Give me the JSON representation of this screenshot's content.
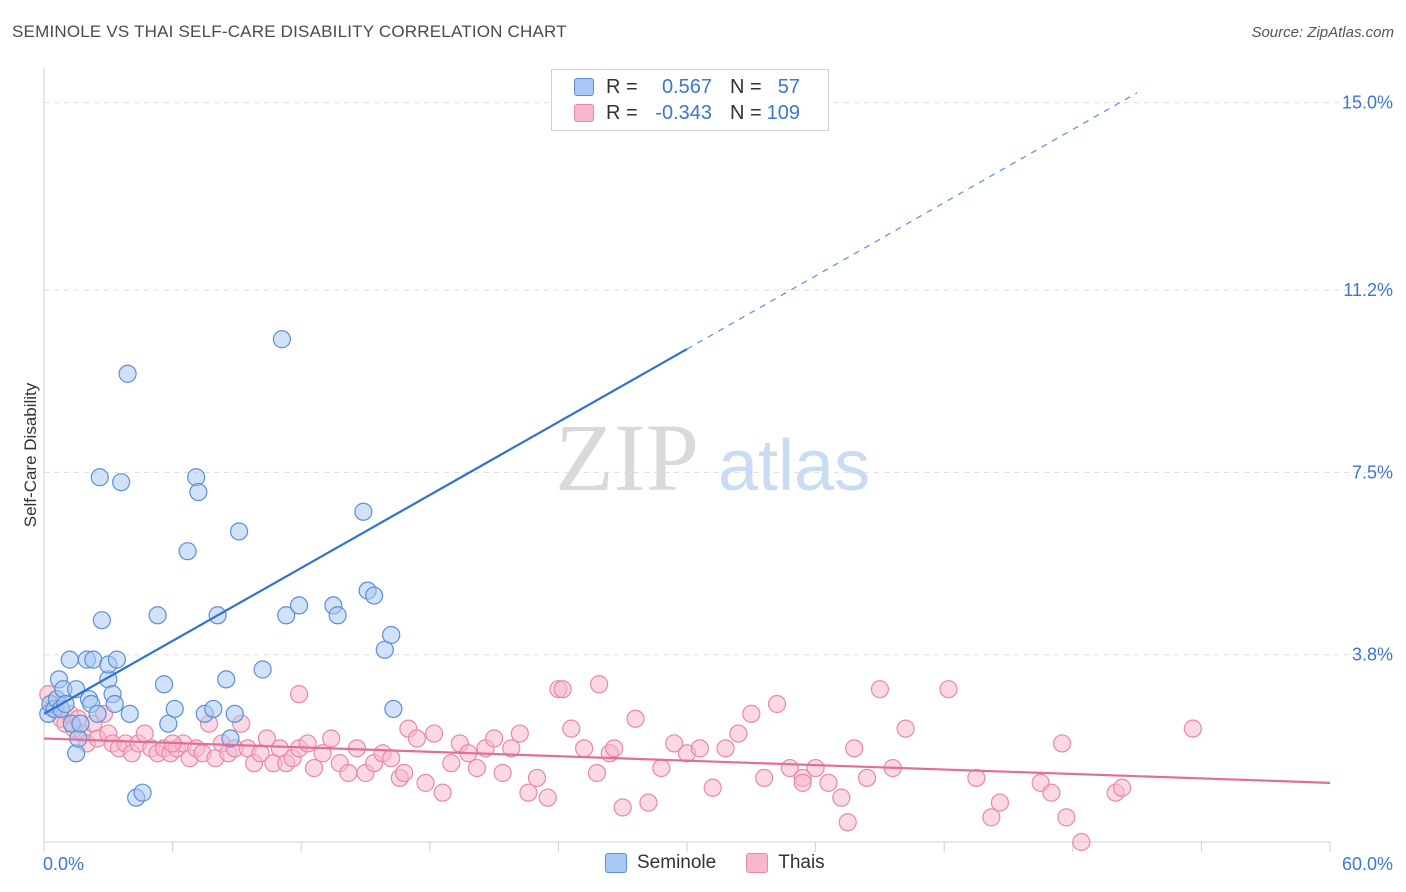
{
  "title": "SEMINOLE VS THAI SELF-CARE DISABILITY CORRELATION CHART",
  "source": "Source: ZipAtlas.com",
  "watermark": {
    "zip": "ZIP",
    "atlas": "atlas"
  },
  "colors": {
    "seminole_fill": "#a9c8f3",
    "seminole_stroke": "#5b8fd6",
    "seminole_line": "#2f72cf",
    "thai_fill": "#f7b8cb",
    "thai_stroke": "#e889a8",
    "thai_line": "#e26e97",
    "axis_label": "#3b77d0",
    "grid": "#dcdcdc"
  },
  "legend_top": [
    {
      "label": "R =",
      "r": "0.567",
      "n_label": "N =",
      "n": "57",
      "series": "Seminole"
    },
    {
      "label": "R =",
      "r": "-0.343",
      "n_label": "N =",
      "n": "109",
      "series": "Thais"
    }
  ],
  "legend_bottom": [
    {
      "name": "Seminole"
    },
    {
      "name": "Thais"
    }
  ],
  "chart_data": {
    "type": "scatter",
    "title": "SEMINOLE VS THAI SELF-CARE DISABILITY CORRELATION CHART",
    "xlabel": "",
    "ylabel": "Self-Care Disability",
    "xlim": [
      0,
      60
    ],
    "ylim": [
      0,
      15.5
    ],
    "x_tick_labels": [
      "0.0%",
      "60.0%"
    ],
    "y_ticks": [
      3.8,
      7.5,
      11.2,
      15.0
    ],
    "y_tick_labels": [
      "3.8%",
      "7.5%",
      "11.2%",
      "15.0%"
    ],
    "grid": true,
    "legend_position": "top-center",
    "series": [
      {
        "name": "Seminole",
        "R": 0.567,
        "N": 57,
        "trend": {
          "x0": 0,
          "y0": 2.6,
          "x1": 30,
          "y1": 10.0,
          "dashed_to_x": 51,
          "dashed_to_y": 15.2
        },
        "points": [
          [
            0.2,
            2.6
          ],
          [
            0.3,
            2.8
          ],
          [
            0.5,
            2.7
          ],
          [
            0.6,
            2.9
          ],
          [
            0.7,
            3.3
          ],
          [
            0.8,
            2.7
          ],
          [
            0.9,
            3.1
          ],
          [
            1.0,
            2.8
          ],
          [
            1.2,
            3.7
          ],
          [
            1.3,
            2.4
          ],
          [
            1.5,
            3.1
          ],
          [
            1.5,
            1.8
          ],
          [
            1.6,
            2.1
          ],
          [
            1.7,
            2.4
          ],
          [
            2.0,
            3.7
          ],
          [
            2.1,
            2.9
          ],
          [
            2.2,
            2.8
          ],
          [
            2.3,
            3.7
          ],
          [
            2.5,
            2.6
          ],
          [
            2.6,
            7.4
          ],
          [
            2.7,
            4.5
          ],
          [
            3.0,
            3.3
          ],
          [
            3.0,
            3.6
          ],
          [
            3.2,
            3.0
          ],
          [
            3.3,
            2.8
          ],
          [
            3.4,
            3.7
          ],
          [
            3.6,
            7.3
          ],
          [
            3.9,
            9.5
          ],
          [
            4.0,
            2.6
          ],
          [
            4.3,
            0.9
          ],
          [
            4.6,
            1.0
          ],
          [
            5.3,
            4.6
          ],
          [
            5.6,
            3.2
          ],
          [
            5.8,
            2.4
          ],
          [
            6.1,
            2.7
          ],
          [
            6.7,
            5.9
          ],
          [
            7.1,
            7.4
          ],
          [
            7.2,
            7.1
          ],
          [
            7.5,
            2.6
          ],
          [
            7.9,
            2.7
          ],
          [
            8.1,
            4.6
          ],
          [
            8.5,
            3.3
          ],
          [
            8.7,
            2.1
          ],
          [
            8.9,
            2.6
          ],
          [
            9.1,
            6.3
          ],
          [
            10.2,
            3.5
          ],
          [
            11.1,
            10.2
          ],
          [
            11.3,
            4.6
          ],
          [
            11.9,
            4.8
          ],
          [
            13.5,
            4.8
          ],
          [
            13.7,
            4.6
          ],
          [
            14.9,
            6.7
          ],
          [
            15.1,
            5.1
          ],
          [
            15.4,
            5.0
          ],
          [
            15.9,
            3.9
          ],
          [
            16.2,
            4.2
          ],
          [
            16.3,
            2.7
          ]
        ]
      },
      {
        "name": "Thais",
        "R": -0.343,
        "N": 109,
        "trend": {
          "x0": 0,
          "y0": 2.1,
          "x1": 60,
          "y1": 1.2
        },
        "points": [
          [
            0.2,
            3.0
          ],
          [
            0.4,
            2.7
          ],
          [
            0.6,
            2.9
          ],
          [
            0.8,
            2.5
          ],
          [
            1.0,
            2.4
          ],
          [
            1.2,
            2.6
          ],
          [
            1.4,
            2.3
          ],
          [
            1.6,
            2.5
          ],
          [
            1.8,
            2.2
          ],
          [
            2.0,
            2.0
          ],
          [
            2.3,
            2.4
          ],
          [
            2.5,
            2.1
          ],
          [
            2.8,
            2.6
          ],
          [
            3.0,
            2.2
          ],
          [
            3.2,
            2.0
          ],
          [
            3.5,
            1.9
          ],
          [
            3.8,
            2.0
          ],
          [
            4.1,
            1.8
          ],
          [
            4.4,
            2.0
          ],
          [
            4.7,
            2.2
          ],
          [
            5.0,
            1.9
          ],
          [
            5.3,
            1.8
          ],
          [
            5.6,
            1.9
          ],
          [
            5.9,
            1.8
          ],
          [
            6.2,
            1.9
          ],
          [
            6.5,
            2.0
          ],
          [
            6.8,
            1.7
          ],
          [
            7.1,
            1.9
          ],
          [
            7.4,
            1.8
          ],
          [
            7.7,
            2.4
          ],
          [
            8.0,
            1.7
          ],
          [
            8.3,
            2.0
          ],
          [
            8.6,
            1.8
          ],
          [
            8.9,
            1.9
          ],
          [
            9.2,
            2.4
          ],
          [
            9.5,
            1.9
          ],
          [
            9.8,
            1.6
          ],
          [
            10.1,
            1.8
          ],
          [
            10.4,
            2.1
          ],
          [
            10.7,
            1.6
          ],
          [
            11.0,
            1.9
          ],
          [
            11.3,
            1.6
          ],
          [
            11.6,
            1.7
          ],
          [
            11.9,
            1.9
          ],
          [
            12.3,
            2.0
          ],
          [
            12.6,
            1.5
          ],
          [
            13.0,
            1.8
          ],
          [
            13.4,
            2.1
          ],
          [
            13.8,
            1.6
          ],
          [
            14.2,
            1.4
          ],
          [
            14.6,
            1.9
          ],
          [
            15.0,
            1.4
          ],
          [
            15.4,
            1.6
          ],
          [
            15.8,
            1.8
          ],
          [
            16.2,
            1.7
          ],
          [
            16.6,
            1.3
          ],
          [
            17.0,
            2.3
          ],
          [
            17.4,
            2.1
          ],
          [
            17.8,
            1.2
          ],
          [
            18.2,
            2.2
          ],
          [
            18.6,
            1.0
          ],
          [
            19.0,
            1.6
          ],
          [
            19.4,
            2.0
          ],
          [
            19.8,
            1.8
          ],
          [
            20.2,
            1.5
          ],
          [
            20.6,
            1.9
          ],
          [
            21.0,
            2.1
          ],
          [
            21.4,
            1.4
          ],
          [
            21.8,
            1.9
          ],
          [
            22.2,
            2.2
          ],
          [
            22.6,
            1.0
          ],
          [
            23.0,
            1.3
          ],
          [
            23.5,
            0.9
          ],
          [
            24.0,
            3.1
          ],
          [
            24.6,
            2.3
          ],
          [
            25.2,
            1.9
          ],
          [
            25.8,
            1.4
          ],
          [
            26.4,
            1.8
          ],
          [
            27.0,
            0.7
          ],
          [
            27.6,
            2.5
          ],
          [
            28.2,
            0.8
          ],
          [
            28.8,
            1.5
          ],
          [
            29.4,
            2.0
          ],
          [
            30.0,
            1.8
          ],
          [
            30.6,
            1.9
          ],
          [
            31.2,
            1.1
          ],
          [
            31.8,
            1.9
          ],
          [
            32.4,
            2.2
          ],
          [
            33.0,
            2.6
          ],
          [
            33.6,
            1.3
          ],
          [
            34.2,
            2.8
          ],
          [
            34.8,
            1.5
          ],
          [
            35.4,
            1.3
          ],
          [
            36.0,
            1.5
          ],
          [
            36.6,
            1.2
          ],
          [
            37.2,
            0.9
          ],
          [
            37.8,
            1.9
          ],
          [
            38.4,
            1.3
          ],
          [
            39.0,
            3.1
          ],
          [
            39.6,
            1.5
          ],
          [
            40.2,
            2.3
          ],
          [
            43.5,
            1.3
          ],
          [
            44.2,
            0.5
          ],
          [
            46.5,
            1.2
          ],
          [
            47.5,
            2.0
          ],
          [
            47.0,
            1.0
          ],
          [
            50.0,
            1.0
          ],
          [
            50.3,
            1.1
          ],
          [
            53.6,
            2.3
          ]
        ]
      }
    ]
  },
  "extra_thai_points": [
    [
      6.0,
      2.0
    ],
    [
      11.9,
      3.0
    ],
    [
      16.8,
      1.4
    ],
    [
      24.2,
      3.1
    ],
    [
      25.9,
      3.2
    ],
    [
      26.6,
      1.9
    ],
    [
      35.4,
      1.2
    ],
    [
      37.5,
      0.4
    ],
    [
      42.2,
      3.1
    ],
    [
      44.6,
      0.8
    ],
    [
      47.7,
      0.5
    ],
    [
      48.4,
      0.0
    ]
  ],
  "x_axis": {
    "left_label": "0.0%",
    "right_label": "60.0%"
  },
  "y_axis_title": "Self-Care Disability"
}
